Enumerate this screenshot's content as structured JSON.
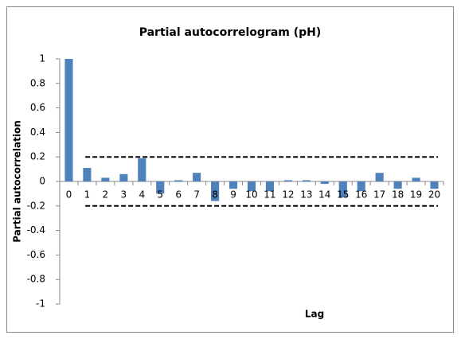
{
  "chart_data": {
    "type": "bar",
    "title": "Partial autocorrelogram (pH)",
    "x_label": "Lag",
    "y_label": "Partial autocorrelation",
    "categories": [
      "0",
      "1",
      "2",
      "3",
      "4",
      "5",
      "6",
      "7",
      "8",
      "9",
      "10",
      "11",
      "12",
      "13",
      "14",
      "15",
      "16",
      "17",
      "18",
      "19",
      "20"
    ],
    "values": [
      1,
      0.11,
      0.03,
      0.06,
      0.19,
      -0.1,
      0.01,
      0.07,
      -0.16,
      -0.06,
      -0.08,
      -0.08,
      0.01,
      0.01,
      -0.02,
      -0.13,
      -0.08,
      0.07,
      -0.06,
      0.03,
      -0.06
    ],
    "color": "#4f81bd",
    "confidence_bounds": [
      -0.2,
      0.2
    ],
    "ylim": [
      -1,
      1
    ],
    "yticks": [
      -1,
      -0.8,
      -0.6,
      -0.4,
      -0.2,
      0,
      0.2,
      0.4,
      0.6,
      0.8,
      1
    ],
    "grid": false
  }
}
